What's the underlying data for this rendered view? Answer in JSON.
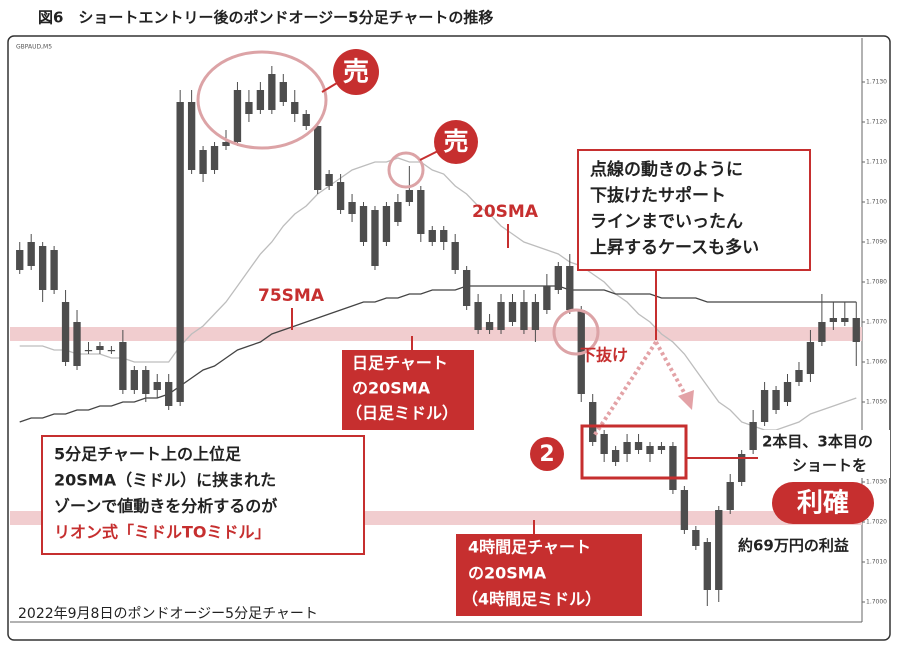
{
  "title": "図6　ショートエントリー後のポンドオージー5分足チャートの推移",
  "chart_data": {
    "type": "candlestick",
    "label": "GBPAUD,M5",
    "caption": "2022年9月8日のポンドオージー5分足チャート",
    "ylim": [
      1.6995,
      1.714
    ],
    "yticks": [
      {
        "value": 1.7,
        "label": "1.7000"
      },
      {
        "value": 1.701,
        "label": "1.7010"
      },
      {
        "value": 1.702,
        "label": "1.7020"
      },
      {
        "value": 1.703,
        "label": "1.7030"
      },
      {
        "value": 1.704,
        "label": "1.7040"
      },
      {
        "value": 1.705,
        "label": "1.7050"
      },
      {
        "value": 1.706,
        "label": "1.7060"
      },
      {
        "value": 1.707,
        "label": "1.7070"
      },
      {
        "value": 1.708,
        "label": "1.7080"
      },
      {
        "value": 1.709,
        "label": "1.7090"
      },
      {
        "value": 1.71,
        "label": "1.7100"
      },
      {
        "value": 1.711,
        "label": "1.7110"
      },
      {
        "value": 1.712,
        "label": "1.7120"
      },
      {
        "value": 1.713,
        "label": "1.7130"
      }
    ],
    "color": "#4d4d4d",
    "open": [
      1.7088,
      1.7084,
      1.7089,
      1.7078,
      1.7075,
      1.707,
      1.7063,
      1.7063,
      1.7063,
      1.7065,
      1.7053,
      1.7058,
      1.7053,
      1.7055,
      1.705,
      1.7125,
      1.7113,
      1.7108,
      1.7114,
      1.7115,
      1.7125,
      1.7123,
      1.7123,
      1.713,
      1.7125,
      1.7122,
      1.7119,
      1.7107,
      1.7105,
      1.71,
      1.7099,
      1.7098,
      1.709,
      1.7095,
      1.71,
      1.7103,
      1.7093,
      1.7093,
      1.709,
      1.7083,
      1.7075,
      1.707,
      1.7068,
      1.7075,
      1.7075,
      1.7068,
      1.7073,
      1.7078,
      1.7084,
      1.7073,
      1.705,
      1.7042,
      1.7038,
      1.704,
      1.704,
      1.7039,
      1.7039,
      1.7039,
      1.7028,
      1.7018,
      1.7015,
      1.7003,
      1.7023,
      1.703,
      1.7038,
      1.7045,
      1.7053,
      1.705,
      1.7055,
      1.7057,
      1.7065,
      1.707,
      1.707,
      1.7071
    ],
    "high": [
      1.709,
      1.7092,
      1.709,
      1.7089,
      1.7078,
      1.7073,
      1.7065,
      1.7065,
      1.7064,
      1.7068,
      1.7059,
      1.7059,
      1.7057,
      1.7057,
      1.7128,
      1.7128,
      1.7114,
      1.7115,
      1.7118,
      1.713,
      1.7128,
      1.713,
      1.7134,
      1.7132,
      1.7128,
      1.7123,
      1.712,
      1.7108,
      1.7107,
      1.7102,
      1.71,
      1.7099,
      1.71,
      1.7102,
      1.7109,
      1.7104,
      1.7094,
      1.7094,
      1.7092,
      1.7084,
      1.7077,
      1.7072,
      1.7077,
      1.7077,
      1.7078,
      1.7077,
      1.7082,
      1.7085,
      1.7087,
      1.7074,
      1.7052,
      1.7043,
      1.7039,
      1.7042,
      1.7042,
      1.704,
      1.704,
      1.704,
      1.7029,
      1.7019,
      1.7016,
      1.7024,
      1.7032,
      1.7038,
      1.7048,
      1.7055,
      1.7054,
      1.7057,
      1.706,
      1.7068,
      1.7077,
      1.7075,
      1.7075,
      1.7075
    ],
    "low": [
      1.7082,
      1.7083,
      1.7075,
      1.7077,
      1.7059,
      1.7058,
      1.7062,
      1.7062,
      1.7062,
      1.7052,
      1.7052,
      1.705,
      1.7051,
      1.7048,
      1.7049,
      1.7107,
      1.7105,
      1.7107,
      1.7113,
      1.7114,
      1.712,
      1.7122,
      1.7122,
      1.7124,
      1.712,
      1.7118,
      1.7102,
      1.7103,
      1.7097,
      1.7095,
      1.7089,
      1.7083,
      1.7089,
      1.7094,
      1.7099,
      1.709,
      1.7089,
      1.7088,
      1.7082,
      1.7073,
      1.7067,
      1.7067,
      1.7067,
      1.7069,
      1.7067,
      1.7065,
      1.7072,
      1.7077,
      1.7072,
      1.705,
      1.7039,
      1.7035,
      1.7034,
      1.7035,
      1.7037,
      1.7035,
      1.7037,
      1.7027,
      1.7017,
      1.7013,
      1.6999,
      1.7,
      1.7022,
      1.7029,
      1.7037,
      1.7044,
      1.7047,
      1.7049,
      1.7054,
      1.7055,
      1.7064,
      1.7068,
      1.7069,
      1.7059
    ],
    "close": [
      1.7083,
      1.709,
      1.7078,
      1.7088,
      1.706,
      1.7059,
      1.7063,
      1.7064,
      1.7063,
      1.7053,
      1.7058,
      1.7052,
      1.7055,
      1.7049,
      1.7125,
      1.7108,
      1.7107,
      1.7114,
      1.7115,
      1.7128,
      1.7122,
      1.7128,
      1.7132,
      1.7125,
      1.7122,
      1.7119,
      1.7103,
      1.7104,
      1.7098,
      1.7097,
      1.709,
      1.7084,
      1.7099,
      1.71,
      1.7103,
      1.7092,
      1.709,
      1.709,
      1.7083,
      1.7074,
      1.7068,
      1.7068,
      1.7075,
      1.707,
      1.7068,
      1.7075,
      1.7079,
      1.7084,
      1.7073,
      1.7052,
      1.704,
      1.7037,
      1.7035,
      1.7037,
      1.7038,
      1.7037,
      1.7038,
      1.7028,
      1.7018,
      1.7014,
      1.7003,
      1.7023,
      1.703,
      1.7037,
      1.7045,
      1.7053,
      1.7048,
      1.7055,
      1.7058,
      1.7065,
      1.707,
      1.7071,
      1.7071,
      1.7065
    ],
    "lines": [
      {
        "color": "#bdbdbd",
        "values": [
          1.7064,
          1.7064,
          1.7064,
          1.7063,
          1.7063,
          1.7062,
          1.7062,
          1.7062,
          1.7061,
          1.7061,
          1.706,
          1.706,
          1.706,
          1.706,
          1.7064,
          1.7067,
          1.7069,
          1.7072,
          1.7075,
          1.7079,
          1.7083,
          1.7087,
          1.709,
          1.7094,
          1.7097,
          1.7099,
          1.7102,
          1.7104,
          1.7106,
          1.7108,
          1.7109,
          1.711,
          1.711,
          1.7111,
          1.711,
          1.711,
          1.7108,
          1.7107,
          1.7104,
          1.7102,
          1.7099,
          1.7097,
          1.7094,
          1.7092,
          1.709,
          1.7089,
          1.7088,
          1.7087,
          1.7085,
          1.7084,
          1.7082,
          1.708,
          1.7077,
          1.7075,
          1.7072,
          1.707,
          1.7067,
          1.7065,
          1.7062,
          1.7058,
          1.7054,
          1.705,
          1.7048,
          1.7045,
          1.7044,
          1.7043,
          1.7043,
          1.7044,
          1.7045,
          1.7047,
          1.7048,
          1.7049,
          1.705,
          1.7051
        ]
      },
      {
        "color": "#444444",
        "values": [
          1.7045,
          1.7046,
          1.7046,
          1.7047,
          1.7047,
          1.7048,
          1.7048,
          1.7049,
          1.7049,
          1.705,
          1.705,
          1.7051,
          1.7051,
          1.7052,
          1.7054,
          1.7056,
          1.7058,
          1.7059,
          1.7061,
          1.7063,
          1.7064,
          1.7065,
          1.7067,
          1.7068,
          1.7069,
          1.707,
          1.7071,
          1.7072,
          1.7073,
          1.7074,
          1.7075,
          1.7075,
          1.7076,
          1.7076,
          1.7077,
          1.7077,
          1.7078,
          1.7078,
          1.7078,
          1.7079,
          1.7079,
          1.7079,
          1.7079,
          1.7079,
          1.7079,
          1.7079,
          1.7079,
          1.7079,
          1.7078,
          1.7078,
          1.7078,
          1.7078,
          1.7077,
          1.7077,
          1.7077,
          1.7077,
          1.7076,
          1.7076,
          1.7076,
          1.7076,
          1.7075,
          1.7075,
          1.7075,
          1.7075,
          1.7075,
          1.7075,
          1.7075,
          1.7075,
          1.7075,
          1.7075,
          1.7075,
          1.7075,
          1.7075,
          1.7075
        ]
      }
    ],
    "bands": [
      1.7067,
      1.7021
    ],
    "band_color": "#f1cdcf"
  },
  "annotations": {
    "sell": [
      "売",
      "売"
    ],
    "sma20": "20SMA",
    "sma75": "75SMA",
    "daily_box": [
      "日足チャート",
      "の20SMA",
      "（日足ミドル）"
    ],
    "note": [
      "点線の動きのように",
      "下抜けたサポート",
      "ラインまでいったん",
      "上昇するケースも多い"
    ],
    "break": "下抜け",
    "number": "2",
    "short": [
      "2本目、3本目の",
      "ショートを"
    ],
    "take_profit": "利確",
    "profit": "約69万円の利益",
    "h4_box": [
      "4時間足チャート",
      "の20SMA",
      "（4時間足ミドル）"
    ],
    "zone_box": [
      "5分足チャート上の上位足",
      "20SMA（ミドル）に挟まれた",
      "ゾーンで値動きを分析するのが",
      "リオン式「ミドルTOミドル」"
    ]
  }
}
